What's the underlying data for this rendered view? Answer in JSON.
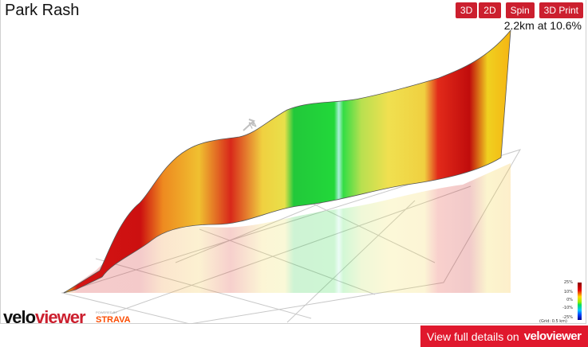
{
  "title": "Park Rash",
  "toolbar": {
    "btn_3d": "3D",
    "btn_2d": "2D",
    "btn_spin": "Spin",
    "btn_3dprint": "3D Print"
  },
  "stat": "2.2km at 10.6%",
  "legend": {
    "labels": [
      "25%",
      "10%",
      "0%",
      "-10%",
      "-25%"
    ],
    "grid_note": "(Grid: 0.5 km)"
  },
  "logo": {
    "part1": "velo",
    "part2": "viewer",
    "powered": "POWERED BY",
    "strava": "STRAVA"
  },
  "cta": {
    "text": "View full details on",
    "brand": "veloviewer"
  },
  "colors": {
    "accent": "#cc1f2e",
    "strava": "#fc4c02"
  },
  "compass": "N"
}
